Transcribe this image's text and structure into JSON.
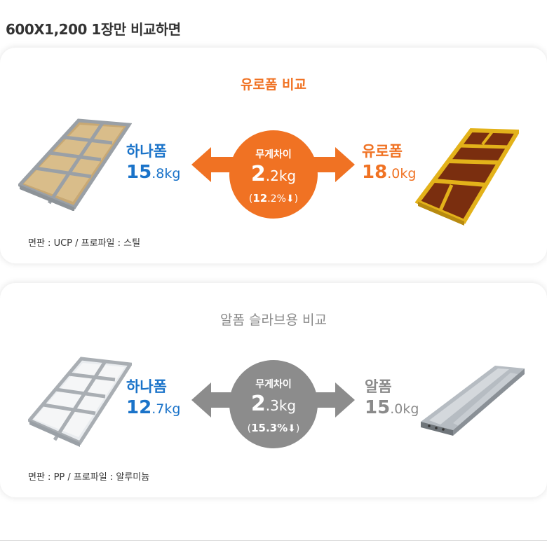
{
  "header": {
    "title": "600X1,200 1장만 비교하면"
  },
  "comparisons": [
    {
      "title": "유로폼 비교",
      "left": {
        "name": "하나폼",
        "weight_int": "15",
        "weight_dec": ".8kg"
      },
      "right": {
        "name": "유로폼",
        "weight_int": "18",
        "weight_dec": ".0kg"
      },
      "diff": {
        "label": "무게차이",
        "value_int": "2",
        "value_dec": ".2kg",
        "open": "(",
        "percent": "12",
        "percent_dec": ".2%",
        "close": ")"
      },
      "spec": "면판 : UCP  /  프로파일 : 스틸",
      "accent": "#f07223"
    },
    {
      "title": "알폼 슬라브용 비교",
      "left": {
        "name": "하나폼",
        "weight_int": "12",
        "weight_dec": ".7kg"
      },
      "right": {
        "name": "알폼",
        "weight_int": "15",
        "weight_dec": ".0kg"
      },
      "diff": {
        "label": "무게차이",
        "value_int": "2",
        "value_dec": ".3kg",
        "open": "(",
        "percent": "15",
        "percent_dec": ".3%",
        "close": ")"
      },
      "spec": "면판 : PP  /  프로파일 : 알루미늄",
      "accent": "#8c8c8c"
    }
  ]
}
